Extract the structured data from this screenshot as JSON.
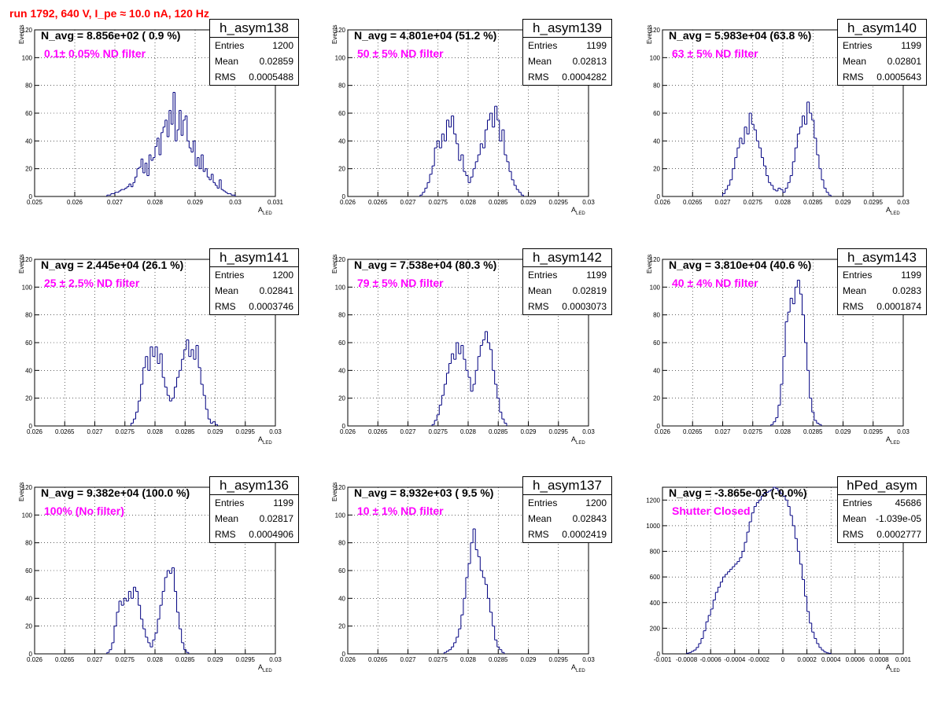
{
  "page_title": "run 1792,   640 V, I_pe ≈ 10.0 nA, 120 Hz",
  "colors": {
    "histogram": "#000080",
    "title": "#ff0000",
    "filter_text": "#ff00ff",
    "grid": "#000000"
  },
  "stat_labels": {
    "entries": "Entries",
    "mean": "Mean",
    "rms": "RMS"
  },
  "chart_data": [
    {
      "type": "bar",
      "name": "h_asym138",
      "navg": "N_avg = 8.856e+02 ( 0.9 %)",
      "filter": "0.1± 0.05% ND filter",
      "stats": {
        "entries": "1200",
        "mean": "0.02859",
        "rms": "0.0005488"
      },
      "xlabel": "A",
      "xlabel_sub": "LED",
      "ylabel": "Events",
      "xlim": [
        0.025,
        0.031
      ],
      "ylim": [
        0,
        120
      ],
      "grid": true,
      "xticks": [
        "0.025",
        "0.026",
        "0.027",
        "0.028",
        "0.029",
        "0.03",
        "0.031"
      ],
      "xtick_values": [
        0.025,
        0.026,
        0.027,
        0.028,
        0.029,
        0.03,
        0.031
      ],
      "yticks": [
        0,
        20,
        40,
        60,
        80,
        100,
        120
      ],
      "bin_start": 0.0268,
      "bin_width": 5e-05,
      "values": [
        1,
        1,
        2,
        2,
        3,
        3,
        4,
        5,
        5,
        6,
        7,
        9,
        7,
        10,
        14,
        20,
        21,
        27,
        17,
        24,
        15,
        30,
        26,
        28,
        36,
        42,
        30,
        46,
        50,
        55,
        43,
        62,
        52,
        75,
        40,
        48,
        62,
        44,
        55,
        58,
        40,
        35,
        32,
        40,
        22,
        28,
        20,
        30,
        18,
        20,
        14,
        12,
        16,
        10,
        8,
        6,
        12,
        5,
        4,
        3,
        2,
        2,
        1,
        1
      ]
    },
    {
      "type": "bar",
      "name": "h_asym139",
      "navg": "N_avg = 4.801e+04 (51.2 %)",
      "filter": "50 ± 5% ND filter",
      "stats": {
        "entries": "1199",
        "mean": "0.02813",
        "rms": "0.0004282"
      },
      "xlabel": "A",
      "xlabel_sub": "LED",
      "ylabel": "Events",
      "xlim": [
        0.026,
        0.03
      ],
      "ylim": [
        0,
        120
      ],
      "grid": true,
      "xticks": [
        "0.026",
        "0.0265",
        "0.027",
        "0.0275",
        "0.028",
        "0.0285",
        "0.029",
        "0.0295",
        "0.03"
      ],
      "xtick_values": [
        0.026,
        0.0265,
        0.027,
        0.0275,
        0.028,
        0.0285,
        0.029,
        0.0295,
        0.03
      ],
      "yticks": [
        0,
        20,
        40,
        60,
        80,
        100,
        120
      ],
      "bin_start": 0.0272,
      "bin_width": 4e-05,
      "values": [
        1,
        3,
        6,
        10,
        16,
        22,
        35,
        40,
        35,
        45,
        40,
        55,
        50,
        58,
        45,
        38,
        26,
        30,
        18,
        15,
        10,
        14,
        20,
        25,
        30,
        38,
        35,
        48,
        55,
        60,
        50,
        65,
        55,
        40,
        48,
        30,
        25,
        18,
        12,
        8,
        5,
        3,
        1
      ]
    },
    {
      "type": "bar",
      "name": "h_asym140",
      "navg": "N_avg = 5.983e+04 (63.8 %)",
      "filter": "63 ± 5% ND filter",
      "stats": {
        "entries": "1199",
        "mean": "0.02801",
        "rms": "0.0005643"
      },
      "xlabel": "A",
      "xlabel_sub": "LED",
      "ylabel": "Events",
      "xlim": [
        0.026,
        0.03
      ],
      "ylim": [
        0,
        120
      ],
      "grid": true,
      "xticks": [
        "0.026",
        "0.0265",
        "0.027",
        "0.0275",
        "0.028",
        "0.0285",
        "0.029",
        "0.0295",
        "0.03"
      ],
      "xtick_values": [
        0.026,
        0.0265,
        0.027,
        0.0275,
        0.028,
        0.0285,
        0.029,
        0.0295,
        0.03
      ],
      "yticks": [
        0,
        20,
        40,
        60,
        80,
        100,
        120
      ],
      "bin_start": 0.027,
      "bin_width": 4e-05,
      "values": [
        2,
        5,
        8,
        12,
        20,
        28,
        35,
        42,
        38,
        50,
        45,
        60,
        52,
        48,
        40,
        35,
        28,
        22,
        15,
        10,
        8,
        5,
        4,
        6,
        5,
        3,
        6,
        10,
        15,
        25,
        35,
        45,
        50,
        58,
        52,
        68,
        60,
        55,
        42,
        30,
        20,
        12,
        6,
        3,
        1
      ]
    },
    {
      "type": "bar",
      "name": "h_asym141",
      "navg": "N_avg = 2.445e+04 (26.1 %)",
      "filter": "25 ± 2.5% ND filter",
      "stats": {
        "entries": "1200",
        "mean": "0.02841",
        "rms": "0.0003746"
      },
      "xlabel": "A",
      "xlabel_sub": "LED",
      "ylabel": "Events",
      "xlim": [
        0.026,
        0.03
      ],
      "ylim": [
        0,
        120
      ],
      "grid": true,
      "xticks": [
        "0.026",
        "0.0265",
        "0.027",
        "0.0275",
        "0.028",
        "0.0285",
        "0.029",
        "0.0295",
        "0.03"
      ],
      "xtick_values": [
        0.026,
        0.0265,
        0.027,
        0.0275,
        0.028,
        0.0285,
        0.029,
        0.0295,
        0.03
      ],
      "yticks": [
        0,
        20,
        40,
        60,
        80,
        100,
        120
      ],
      "bin_start": 0.0276,
      "bin_width": 4e-05,
      "values": [
        2,
        5,
        10,
        18,
        30,
        42,
        50,
        40,
        57,
        50,
        57,
        45,
        52,
        35,
        28,
        22,
        18,
        20,
        28,
        35,
        40,
        48,
        55,
        62,
        50,
        55,
        48,
        58,
        42,
        30,
        22,
        12,
        5,
        2,
        3,
        1
      ]
    },
    {
      "type": "bar",
      "name": "h_asym142",
      "navg": "N_avg = 7.538e+04 (80.3 %)",
      "filter": "79 ± 5% ND filter",
      "stats": {
        "entries": "1199",
        "mean": "0.02819",
        "rms": "0.0003073"
      },
      "xlabel": "A",
      "xlabel_sub": "LED",
      "ylabel": "Events",
      "xlim": [
        0.026,
        0.03
      ],
      "ylim": [
        0,
        120
      ],
      "grid": true,
      "xticks": [
        "0.026",
        "0.0265",
        "0.027",
        "0.0275",
        "0.028",
        "0.0285",
        "0.029",
        "0.0295",
        "0.03"
      ],
      "xtick_values": [
        0.026,
        0.0265,
        0.027,
        0.0275,
        0.028,
        0.0285,
        0.029,
        0.0295,
        0.03
      ],
      "yticks": [
        0,
        20,
        40,
        60,
        80,
        100,
        120
      ],
      "bin_start": 0.0274,
      "bin_width": 4e-05,
      "values": [
        1,
        4,
        8,
        15,
        22,
        30,
        38,
        45,
        52,
        48,
        60,
        52,
        58,
        48,
        40,
        35,
        25,
        30,
        40,
        50,
        58,
        62,
        68,
        60,
        55,
        40,
        30,
        20,
        10,
        5,
        2
      ]
    },
    {
      "type": "bar",
      "name": "h_asym143",
      "navg": "N_avg = 3.810e+04 (40.6 %)",
      "filter": "40 ± 4% ND filter",
      "stats": {
        "entries": "1199",
        "mean": "0.0283",
        "rms": "0.0001874"
      },
      "xlabel": "A",
      "xlabel_sub": "LED",
      "ylabel": "Events",
      "xlim": [
        0.026,
        0.03
      ],
      "ylim": [
        0,
        120
      ],
      "grid": true,
      "xticks": [
        "0.026",
        "0.0265",
        "0.027",
        "0.0275",
        "0.028",
        "0.0285",
        "0.029",
        "0.0295",
        "0.03"
      ],
      "xtick_values": [
        0.026,
        0.0265,
        0.027,
        0.0275,
        0.028,
        0.0285,
        0.029,
        0.0295,
        0.03
      ],
      "yticks": [
        0,
        20,
        40,
        60,
        80,
        100,
        120
      ],
      "bin_start": 0.0278,
      "bin_width": 4e-05,
      "values": [
        1,
        3,
        6,
        15,
        30,
        50,
        75,
        82,
        92,
        88,
        100,
        105,
        95,
        80,
        60,
        40,
        20,
        10,
        4,
        2,
        1
      ]
    },
    {
      "type": "bar",
      "name": "h_asym136",
      "navg": "N_avg = 9.382e+04 (100.0 %)",
      "filter": "100% (No filter)",
      "stats": {
        "entries": "1199",
        "mean": "0.02817",
        "rms": "0.0004906"
      },
      "xlabel": "A",
      "xlabel_sub": "LED",
      "ylabel": "Events",
      "xlim": [
        0.026,
        0.03
      ],
      "ylim": [
        0,
        120
      ],
      "grid": true,
      "xticks": [
        "0.026",
        "0.0265",
        "0.027",
        "0.0275",
        "0.028",
        "0.0285",
        "0.029",
        "0.0295",
        "0.03"
      ],
      "xtick_values": [
        0.026,
        0.0265,
        0.027,
        0.0275,
        0.028,
        0.0285,
        0.029,
        0.0295,
        0.03
      ],
      "yticks": [
        0,
        20,
        40,
        60,
        80,
        100,
        120
      ],
      "bin_start": 0.0272,
      "bin_width": 4e-05,
      "values": [
        1,
        3,
        8,
        20,
        30,
        38,
        35,
        40,
        38,
        45,
        40,
        48,
        45,
        35,
        25,
        18,
        12,
        8,
        5,
        10,
        15,
        25,
        35,
        45,
        55,
        60,
        58,
        62,
        45,
        30,
        18,
        8,
        3,
        1
      ]
    },
    {
      "type": "bar",
      "name": "h_asym137",
      "navg": "N_avg = 8.932e+03 ( 9.5 %)",
      "filter": "10 ± 1% ND filter",
      "stats": {
        "entries": "1200",
        "mean": "0.02843",
        "rms": "0.0002419"
      },
      "xlabel": "A",
      "xlabel_sub": "LED",
      "ylabel": "Events",
      "xlim": [
        0.026,
        0.03
      ],
      "ylim": [
        0,
        120
      ],
      "grid": true,
      "xticks": [
        "0.026",
        "0.0265",
        "0.027",
        "0.0275",
        "0.028",
        "0.0285",
        "0.029",
        "0.0295",
        "0.03"
      ],
      "xtick_values": [
        0.026,
        0.0265,
        0.027,
        0.0275,
        0.028,
        0.0285,
        0.029,
        0.0295,
        0.03
      ],
      "yticks": [
        0,
        20,
        40,
        60,
        80,
        100,
        120
      ],
      "bin_start": 0.0276,
      "bin_width": 4e-05,
      "values": [
        1,
        2,
        3,
        5,
        8,
        12,
        18,
        28,
        40,
        55,
        65,
        80,
        90,
        75,
        70,
        60,
        55,
        50,
        40,
        30,
        20,
        10,
        5,
        3,
        1
      ]
    },
    {
      "type": "bar",
      "name": "hPed_asym",
      "navg": "N_avg = -3.865e-03 (-0.0%)",
      "filter": "Shutter Closed",
      "stats": {
        "entries": "45686",
        "mean": "-1.039e-05",
        "rms": "0.0002777"
      },
      "xlabel": "A",
      "xlabel_sub": "LED",
      "ylabel": "",
      "xlim": [
        -0.001,
        0.001
      ],
      "ylim": [
        0,
        1300
      ],
      "grid": true,
      "xticks": [
        "-0.001",
        "-0.0008",
        "-0.0006",
        "-0.0004",
        "-0.0002",
        "0",
        "0.0002",
        "0.0004",
        "0.0006",
        "0.0008",
        "0.001"
      ],
      "xtick_values": [
        -0.001,
        -0.0008,
        -0.0006,
        -0.0004,
        -0.0002,
        0,
        0.0002,
        0.0004,
        0.0006,
        0.0008,
        0.001
      ],
      "yticks": [
        0,
        200,
        400,
        600,
        800,
        1000,
        1200
      ],
      "bin_start": -0.0008,
      "bin_width": 2e-05,
      "values": [
        5,
        10,
        20,
        30,
        50,
        80,
        120,
        180,
        250,
        300,
        350,
        420,
        480,
        520,
        560,
        600,
        620,
        640,
        660,
        680,
        700,
        720,
        750,
        800,
        870,
        950,
        1030,
        1100,
        1150,
        1180,
        1200,
        1230,
        1250,
        1260,
        1270,
        1280,
        1300,
        1290,
        1270,
        1250,
        1230,
        1200,
        1150,
        1080,
        1000,
        900,
        800,
        700,
        580,
        450,
        330,
        240,
        170,
        120,
        80,
        50,
        30,
        15,
        8,
        4
      ]
    }
  ]
}
